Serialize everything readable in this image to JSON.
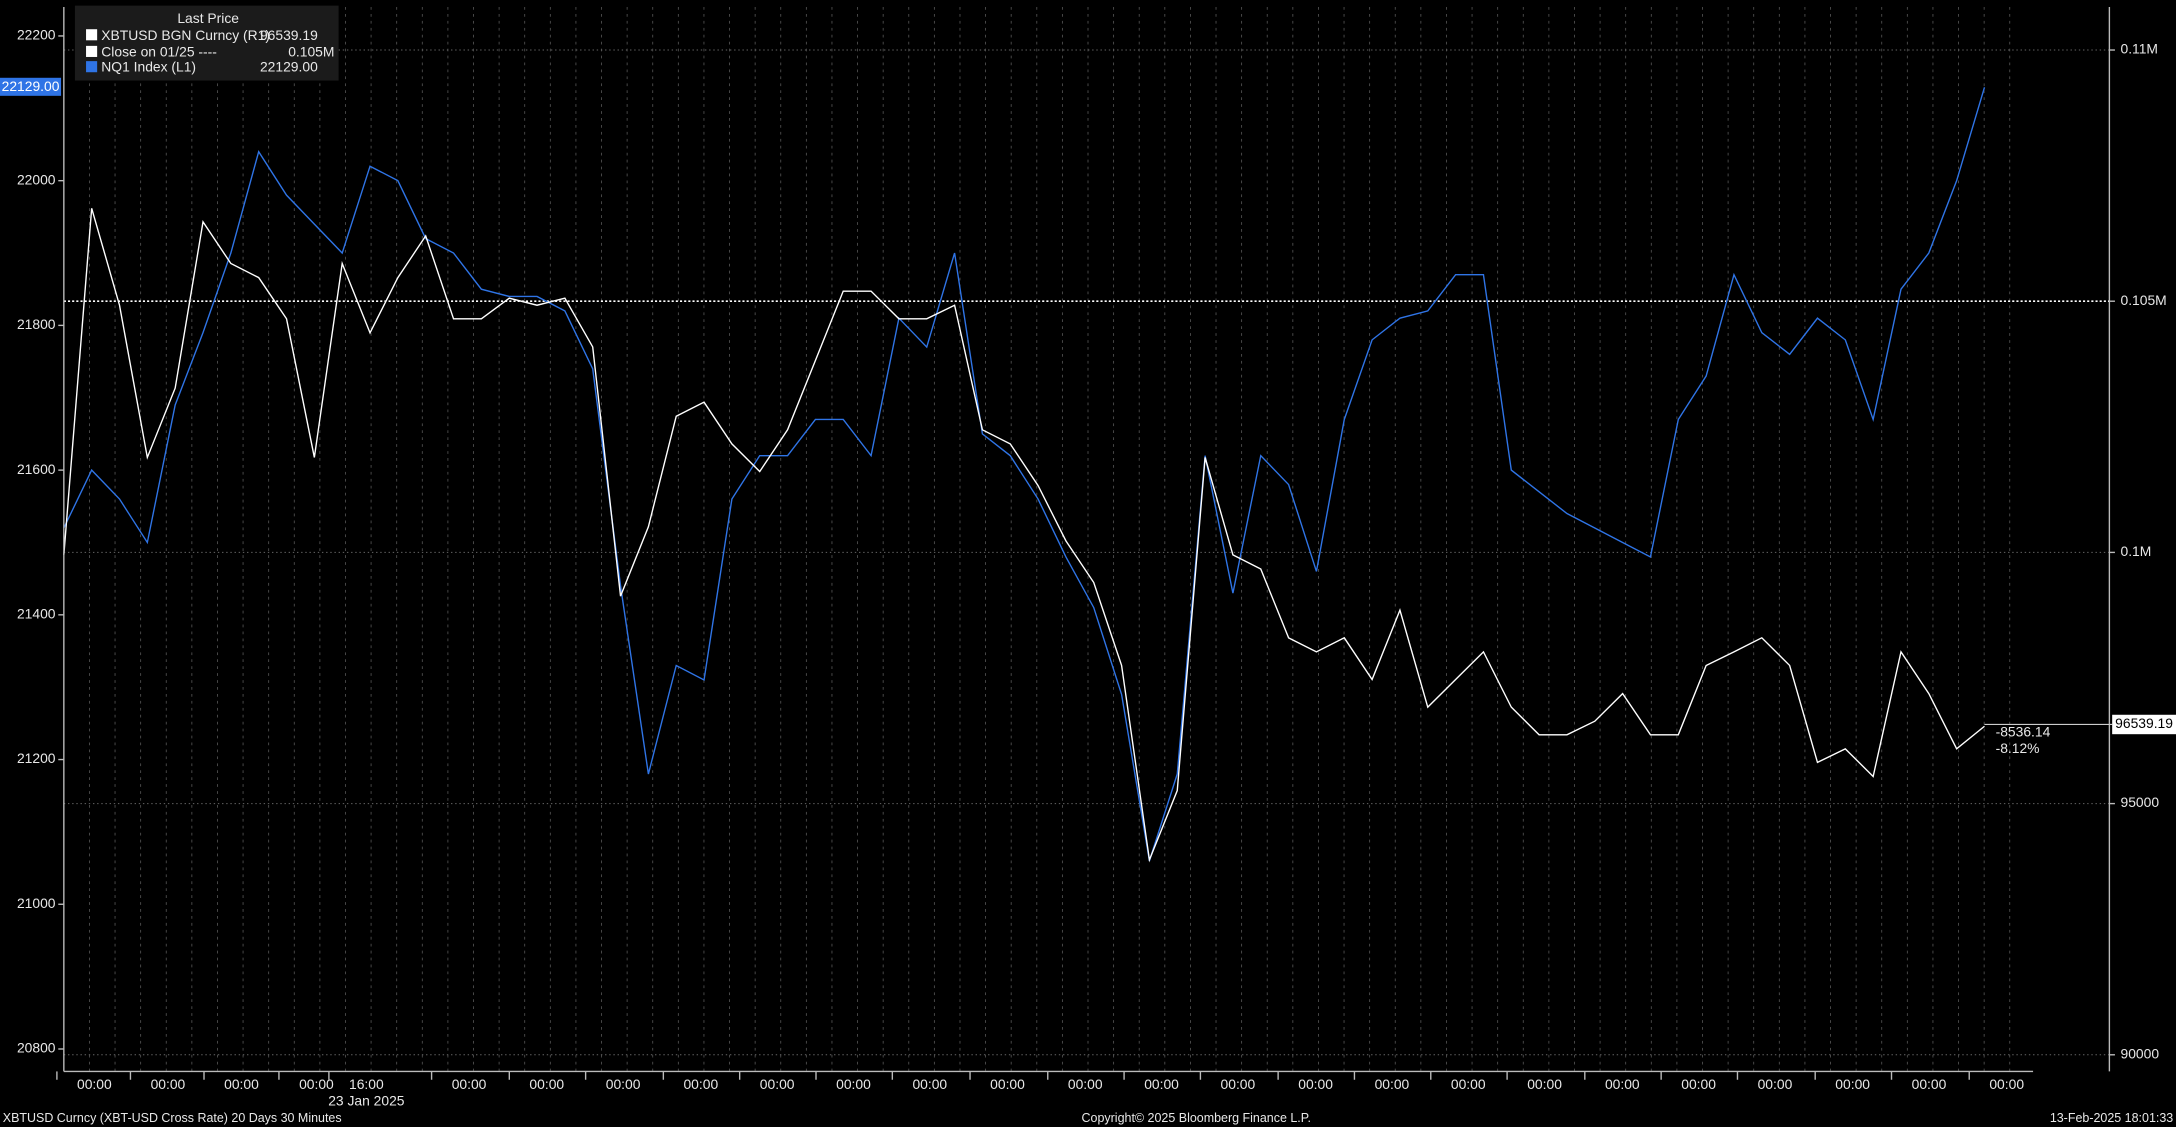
{
  "chart_data": {
    "type": "line",
    "legend_title": "Last Price",
    "xticks": [
      "00:00",
      "00:00",
      "00:00",
      "00:00",
      "16:00",
      "00:00",
      "00:00",
      "00:00",
      "00:00",
      "00:00",
      "00:00",
      "00:00",
      "00:00",
      "00:00",
      "00:00",
      "00:00",
      "00:00",
      "00:00",
      "00:00",
      "00:00",
      "00:00",
      "00:00",
      "00:00",
      "00:00",
      "00:00",
      "00:00"
    ],
    "x_date_label": "23 Jan 2025",
    "ylim": [
      20769,
      22240
    ],
    "yticks": [
      20800,
      21000,
      21200,
      21400,
      21600,
      21800,
      22000,
      22200
    ],
    "y2lim": [
      89669,
      110856
    ],
    "y2ticks": [
      {
        "value": 110000,
        "label": "0.11M"
      },
      {
        "value": 105000,
        "label": "0.105M"
      },
      {
        "value": 100000,
        "label": "0.1M"
      },
      95000,
      90000
    ],
    "reference_line": {
      "name": "Close on 01/25 ----",
      "value": 105000,
      "value_label": "0.105M",
      "axis": "y2",
      "color": "#ffffff"
    },
    "series": [
      {
        "name": "XBTUSD BGN Curncy  (R1)",
        "axis": "y2",
        "color": "#ffffff",
        "last_label": "96539.19",
        "change_label": "-8536.14",
        "change_pct_label": "-8.12%",
        "values": [
          99950,
          106850,
          104920,
          101890,
          103270,
          106580,
          105750,
          105470,
          104650,
          101890,
          105750,
          104370,
          105470,
          106300,
          104650,
          104650,
          105060,
          104920,
          105060,
          104090,
          99130,
          100510,
          102710,
          102990,
          102160,
          101610,
          102440,
          103820,
          105200,
          105200,
          104650,
          104650,
          104920,
          102440,
          102160,
          101330,
          100230,
          99400,
          97750,
          93880,
          95260,
          101890,
          99950,
          99670,
          98300,
          98020,
          98300,
          97470,
          98850,
          96920,
          97470,
          98020,
          96920,
          96370,
          96370,
          96640,
          97190,
          96370,
          96370,
          97750,
          98020,
          98300,
          97750,
          95820,
          96090,
          95540,
          98020,
          97190,
          96090,
          96539.19
        ]
      },
      {
        "name": "NQ1 Index  (L1)",
        "axis": "y",
        "color": "#2f74e6",
        "last_label": "22129.00",
        "values": [
          21520,
          21600,
          21560,
          21500,
          21690,
          21790,
          21900,
          22040,
          21980,
          21940,
          21900,
          22020,
          22000,
          21920,
          21900,
          21850,
          21840,
          21840,
          21820,
          21740,
          21440,
          21180,
          21330,
          21310,
          21560,
          21620,
          21620,
          21670,
          21670,
          21620,
          21810,
          21770,
          21900,
          21650,
          21620,
          21560,
          21480,
          21410,
          21290,
          21060,
          21180,
          21620,
          21430,
          21620,
          21580,
          21460,
          21670,
          21780,
          21810,
          21820,
          21870,
          21870,
          21600,
          21570,
          21540,
          21520,
          21500,
          21480,
          21670,
          21730,
          21870,
          21790,
          21760,
          21810,
          21780,
          21670,
          21850,
          21900,
          22000,
          22129
        ]
      }
    ],
    "footer_left": "XBTUSD Curncy (XBT-USD Cross Rate) 20 Days 30 Minutes",
    "footer_center": "Copyright© 2025 Bloomberg Finance L.P.",
    "footer_right": "13-Feb-2025 18:01:33"
  }
}
